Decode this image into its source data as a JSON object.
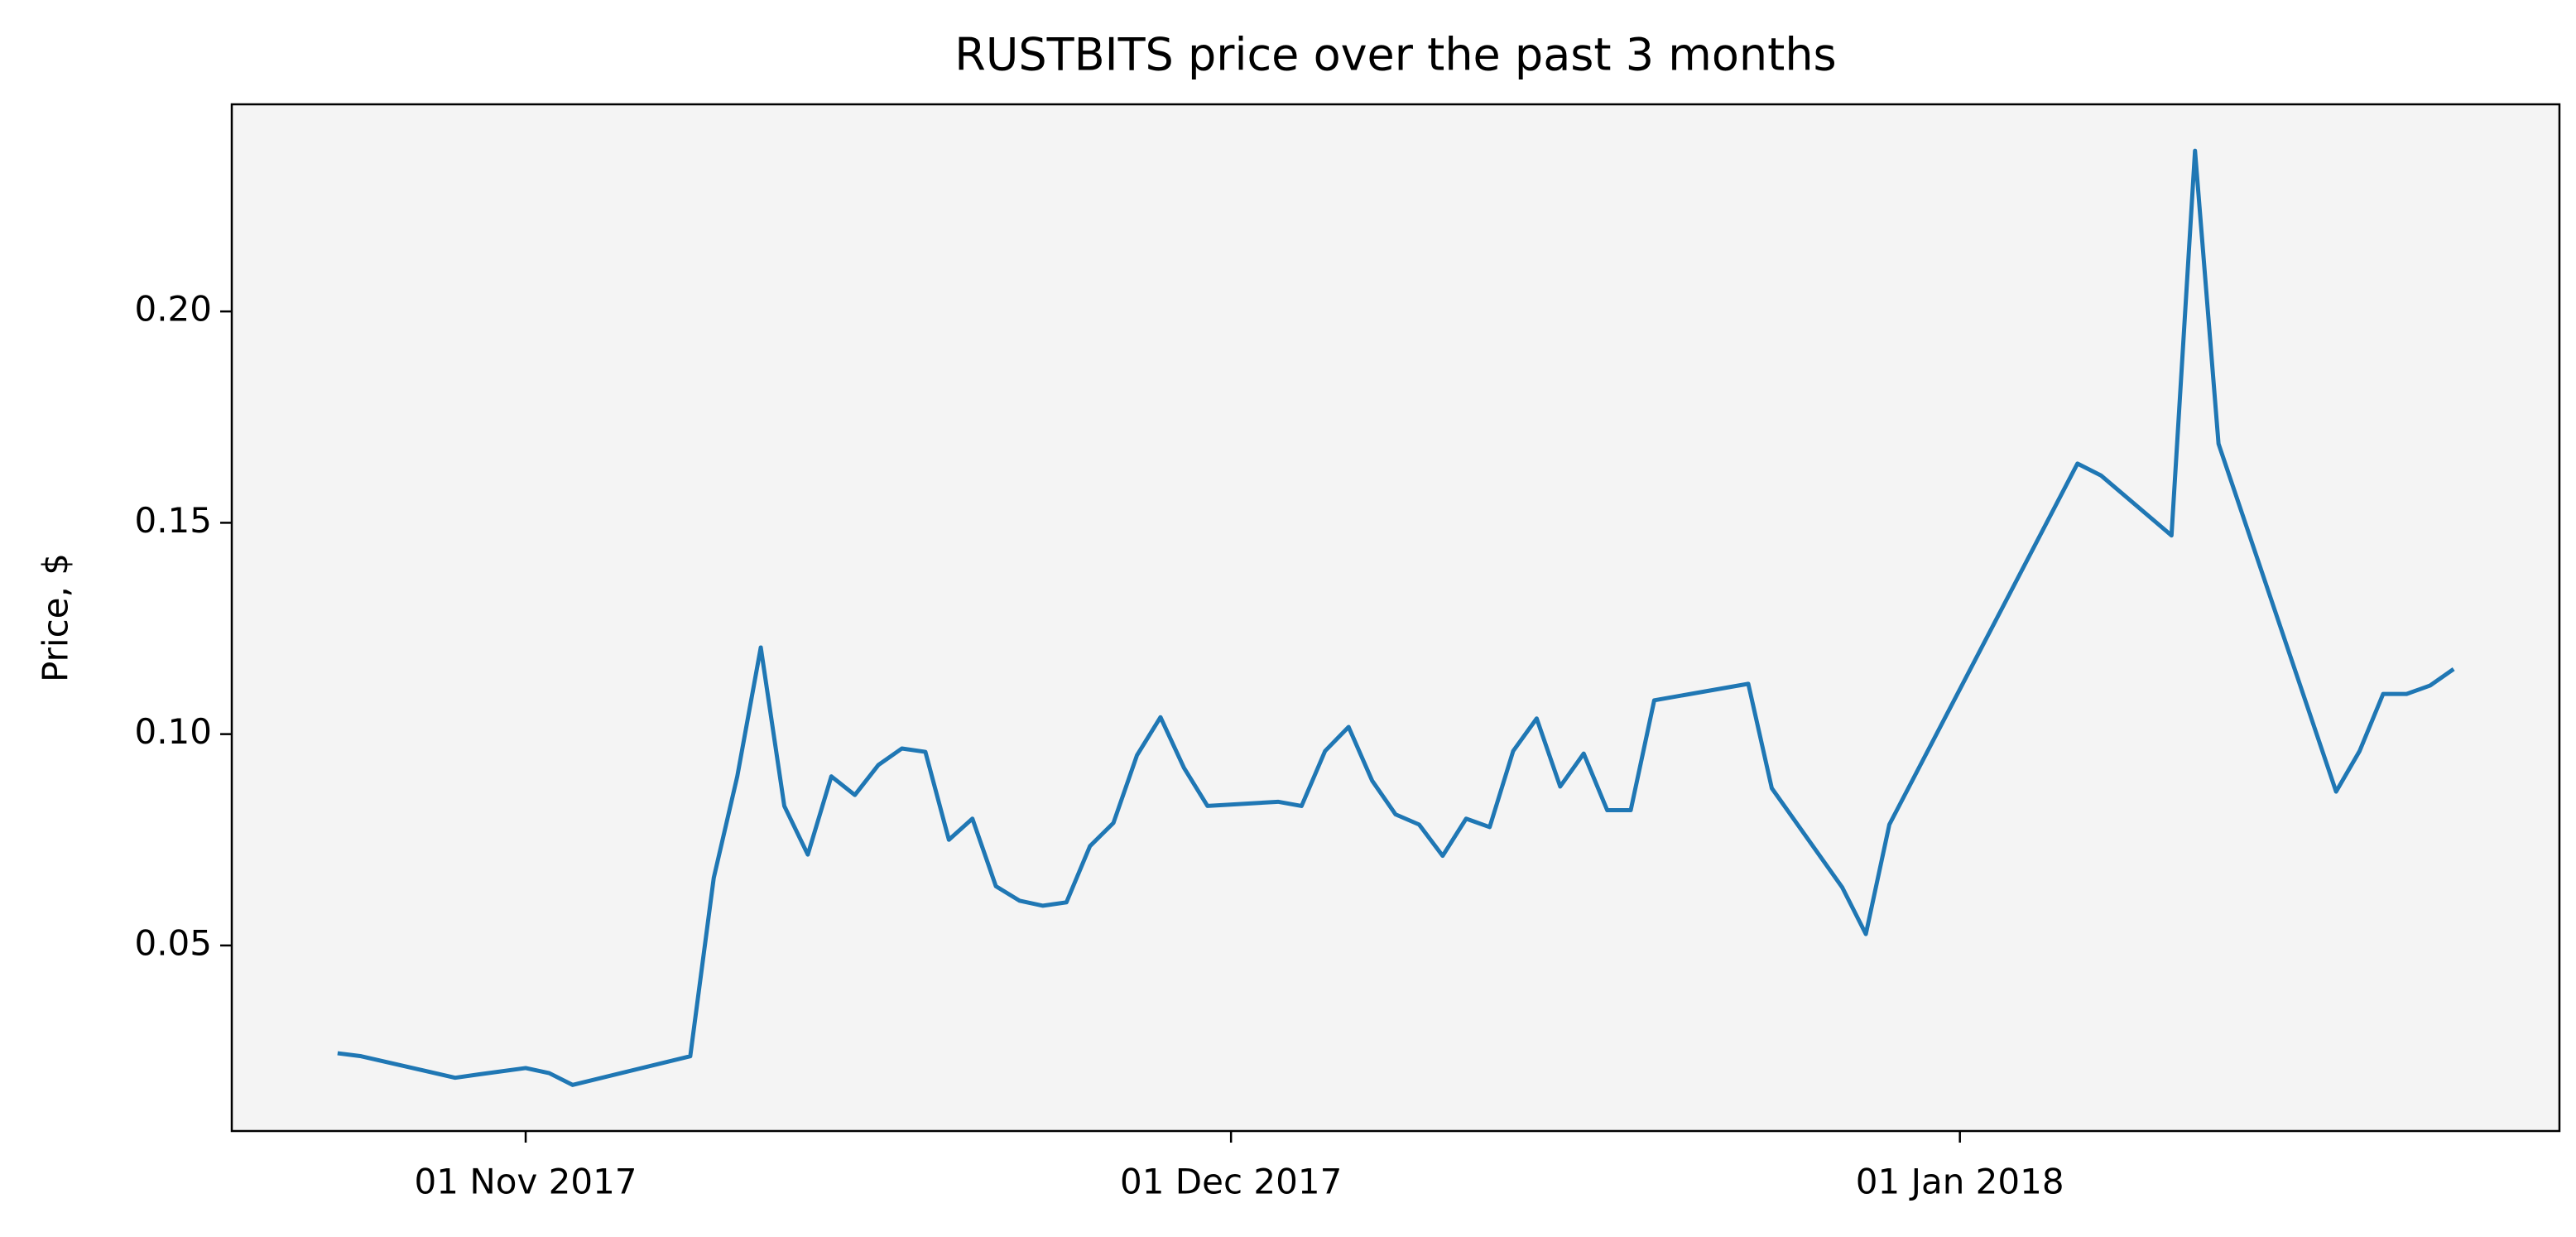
{
  "chart_data": {
    "type": "line",
    "title": "RUSTBITS price over the past 3 months",
    "ylabel": "Price, $",
    "x": [
      "2017-10-24",
      "2017-10-25",
      "2017-10-29",
      "2017-10-30",
      "2017-11-01",
      "2017-11-02",
      "2017-11-03",
      "2017-11-08",
      "2017-11-09",
      "2017-11-10",
      "2017-11-11",
      "2017-11-12",
      "2017-11-13",
      "2017-11-14",
      "2017-11-15",
      "2017-11-16",
      "2017-11-17",
      "2017-11-18",
      "2017-11-19",
      "2017-11-20",
      "2017-11-21",
      "2017-11-22",
      "2017-11-23",
      "2017-11-24",
      "2017-11-25",
      "2017-11-26",
      "2017-11-27",
      "2017-11-28",
      "2017-11-29",
      "2017-11-30",
      "2017-12-03",
      "2017-12-04",
      "2017-12-05",
      "2017-12-06",
      "2017-12-07",
      "2017-12-08",
      "2017-12-09",
      "2017-12-10",
      "2017-12-11",
      "2017-12-12",
      "2017-12-13",
      "2017-12-14",
      "2017-12-15",
      "2017-12-16",
      "2017-12-17",
      "2017-12-18",
      "2017-12-19",
      "2017-12-23",
      "2017-12-24",
      "2017-12-27",
      "2017-12-28",
      "2017-12-29",
      "2018-01-06",
      "2018-01-07",
      "2018-01-10",
      "2018-01-11",
      "2018-01-12",
      "2018-01-17",
      "2018-01-18",
      "2018-01-19",
      "2018-01-20",
      "2018-01-21",
      "2018-01-22"
    ],
    "series": [
      {
        "name": "RUSTBITS",
        "color": "#1f77b4",
        "values": [
          0.0245,
          0.0238,
          0.0187,
          0.0195,
          0.021,
          0.0198,
          0.017,
          0.0238,
          0.066,
          0.09,
          0.1205,
          0.083,
          0.0715,
          0.09,
          0.0856,
          0.0927,
          0.0966,
          0.0958,
          0.075,
          0.08,
          0.064,
          0.0606,
          0.0594,
          0.0602,
          0.0735,
          0.079,
          0.095,
          0.104,
          0.092,
          0.083,
          0.084,
          0.083,
          0.096,
          0.1017,
          0.089,
          0.081,
          0.0786,
          0.0712,
          0.08,
          0.078,
          0.096,
          0.1037,
          0.0876,
          0.0954,
          0.082,
          0.082,
          0.108,
          0.1119,
          0.0872,
          0.0637,
          0.0527,
          0.0786,
          0.164,
          0.1612,
          0.147,
          0.238,
          0.1687,
          0.0864,
          0.096,
          0.1095,
          0.1095,
          0.1115,
          0.1154
        ]
      }
    ],
    "xlim": [
      "2017-10-19T12:00:00Z",
      "2018-01-26T12:00:00Z"
    ],
    "xticks": [
      {
        "value": "2017-11-01",
        "label": "01 Nov 2017"
      },
      {
        "value": "2017-12-01",
        "label": "01 Dec 2017"
      },
      {
        "value": "2018-01-01",
        "label": "01 Jan 2018"
      }
    ],
    "ylim": [
      0.0061,
      0.249
    ],
    "yticks": [
      0.05,
      {
        "value": 0.1,
        "label": "0.10"
      },
      0.15,
      {
        "value": 0.2,
        "label": "0.20"
      }
    ],
    "grid": false,
    "background": "#f4f4f4"
  }
}
